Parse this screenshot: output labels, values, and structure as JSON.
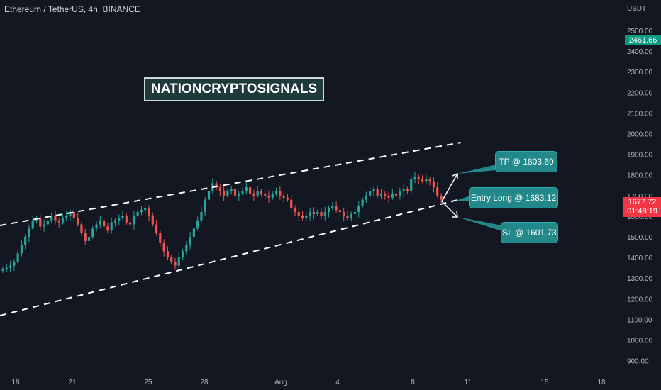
{
  "symbol": {
    "name": "Ethereum / TetherUS",
    "interval": "4h",
    "exchange": "BINANCE",
    "full": "Ethereum / TetherUS, 4h, BINANCE"
  },
  "currency": "USDT",
  "brand": "NATIONCRYPTOSIGNALS",
  "callouts": {
    "tp": "TP @ 1803.69",
    "entry": "Entry Long @ 1683.12",
    "sl": "SL @ 1601.73"
  },
  "price_labels": {
    "current": "1677.72",
    "countdown": "01:48:19",
    "highlighted": "2461.66"
  },
  "colors": {
    "background": "#131722",
    "up": "#26a69a",
    "down": "#ef5350",
    "callout": "#22888a",
    "current_price": "#f23645",
    "highlight": "#089981"
  },
  "chart_data": {
    "type": "candlestick",
    "y_axis": {
      "ticks": [
        "2500.00",
        "2400.00",
        "2300.00",
        "2200.00",
        "2100.00",
        "2000.00",
        "1900.00",
        "1800.00",
        "1700.00",
        "1600.00",
        "1500.00",
        "1400.00",
        "1300.00",
        "1200.00",
        "1100.00",
        "1000.00",
        "900.00"
      ],
      "range": [
        900,
        2500
      ],
      "unit": "USDT"
    },
    "x_axis": {
      "ticks": [
        "18",
        "21",
        "25",
        "28",
        "Aug",
        "4",
        "8",
        "11",
        "15",
        "18"
      ]
    },
    "close_series_approx": [
      1345,
      1350,
      1360,
      1380,
      1420,
      1460,
      1500,
      1540,
      1580,
      1590,
      1550,
      1560,
      1580,
      1600,
      1580,
      1570,
      1590,
      1600,
      1620,
      1590,
      1560,
      1520,
      1480,
      1500,
      1540,
      1560,
      1580,
      1550,
      1530,
      1570,
      1580,
      1590,
      1600,
      1570,
      1560,
      1600,
      1620,
      1630,
      1640,
      1600,
      1560,
      1520,
      1470,
      1430,
      1400,
      1380,
      1360,
      1400,
      1430,
      1460,
      1500,
      1540,
      1580,
      1620,
      1680,
      1720,
      1760,
      1740,
      1720,
      1700,
      1720,
      1730,
      1700,
      1710,
      1720,
      1740,
      1710,
      1700,
      1720,
      1710,
      1700,
      1690,
      1710,
      1720,
      1700,
      1690,
      1680,
      1640,
      1620,
      1600,
      1590,
      1600,
      1620,
      1610,
      1620,
      1600,
      1620,
      1640,
      1650,
      1630,
      1620,
      1600,
      1590,
      1610,
      1620,
      1650,
      1680,
      1700,
      1720,
      1730,
      1700,
      1710,
      1700,
      1690,
      1710,
      1700,
      1720,
      1730,
      1720,
      1780,
      1790,
      1780,
      1770,
      1780,
      1770,
      1740,
      1700,
      1680
    ],
    "channel_lines": {
      "upper": {
        "from_date_price": [
          "start",
          1590
        ],
        "to_date_price": [
          "Aug 11",
          1960
        ]
      },
      "lower": {
        "from_date_price": [
          "start",
          1120
        ],
        "to_date_price": [
          "Aug 10",
          1690
        ]
      }
    },
    "trade_levels": {
      "tp": 1803.69,
      "entry": 1683.12,
      "sl": 1601.73
    },
    "current_price": 1677.72
  }
}
